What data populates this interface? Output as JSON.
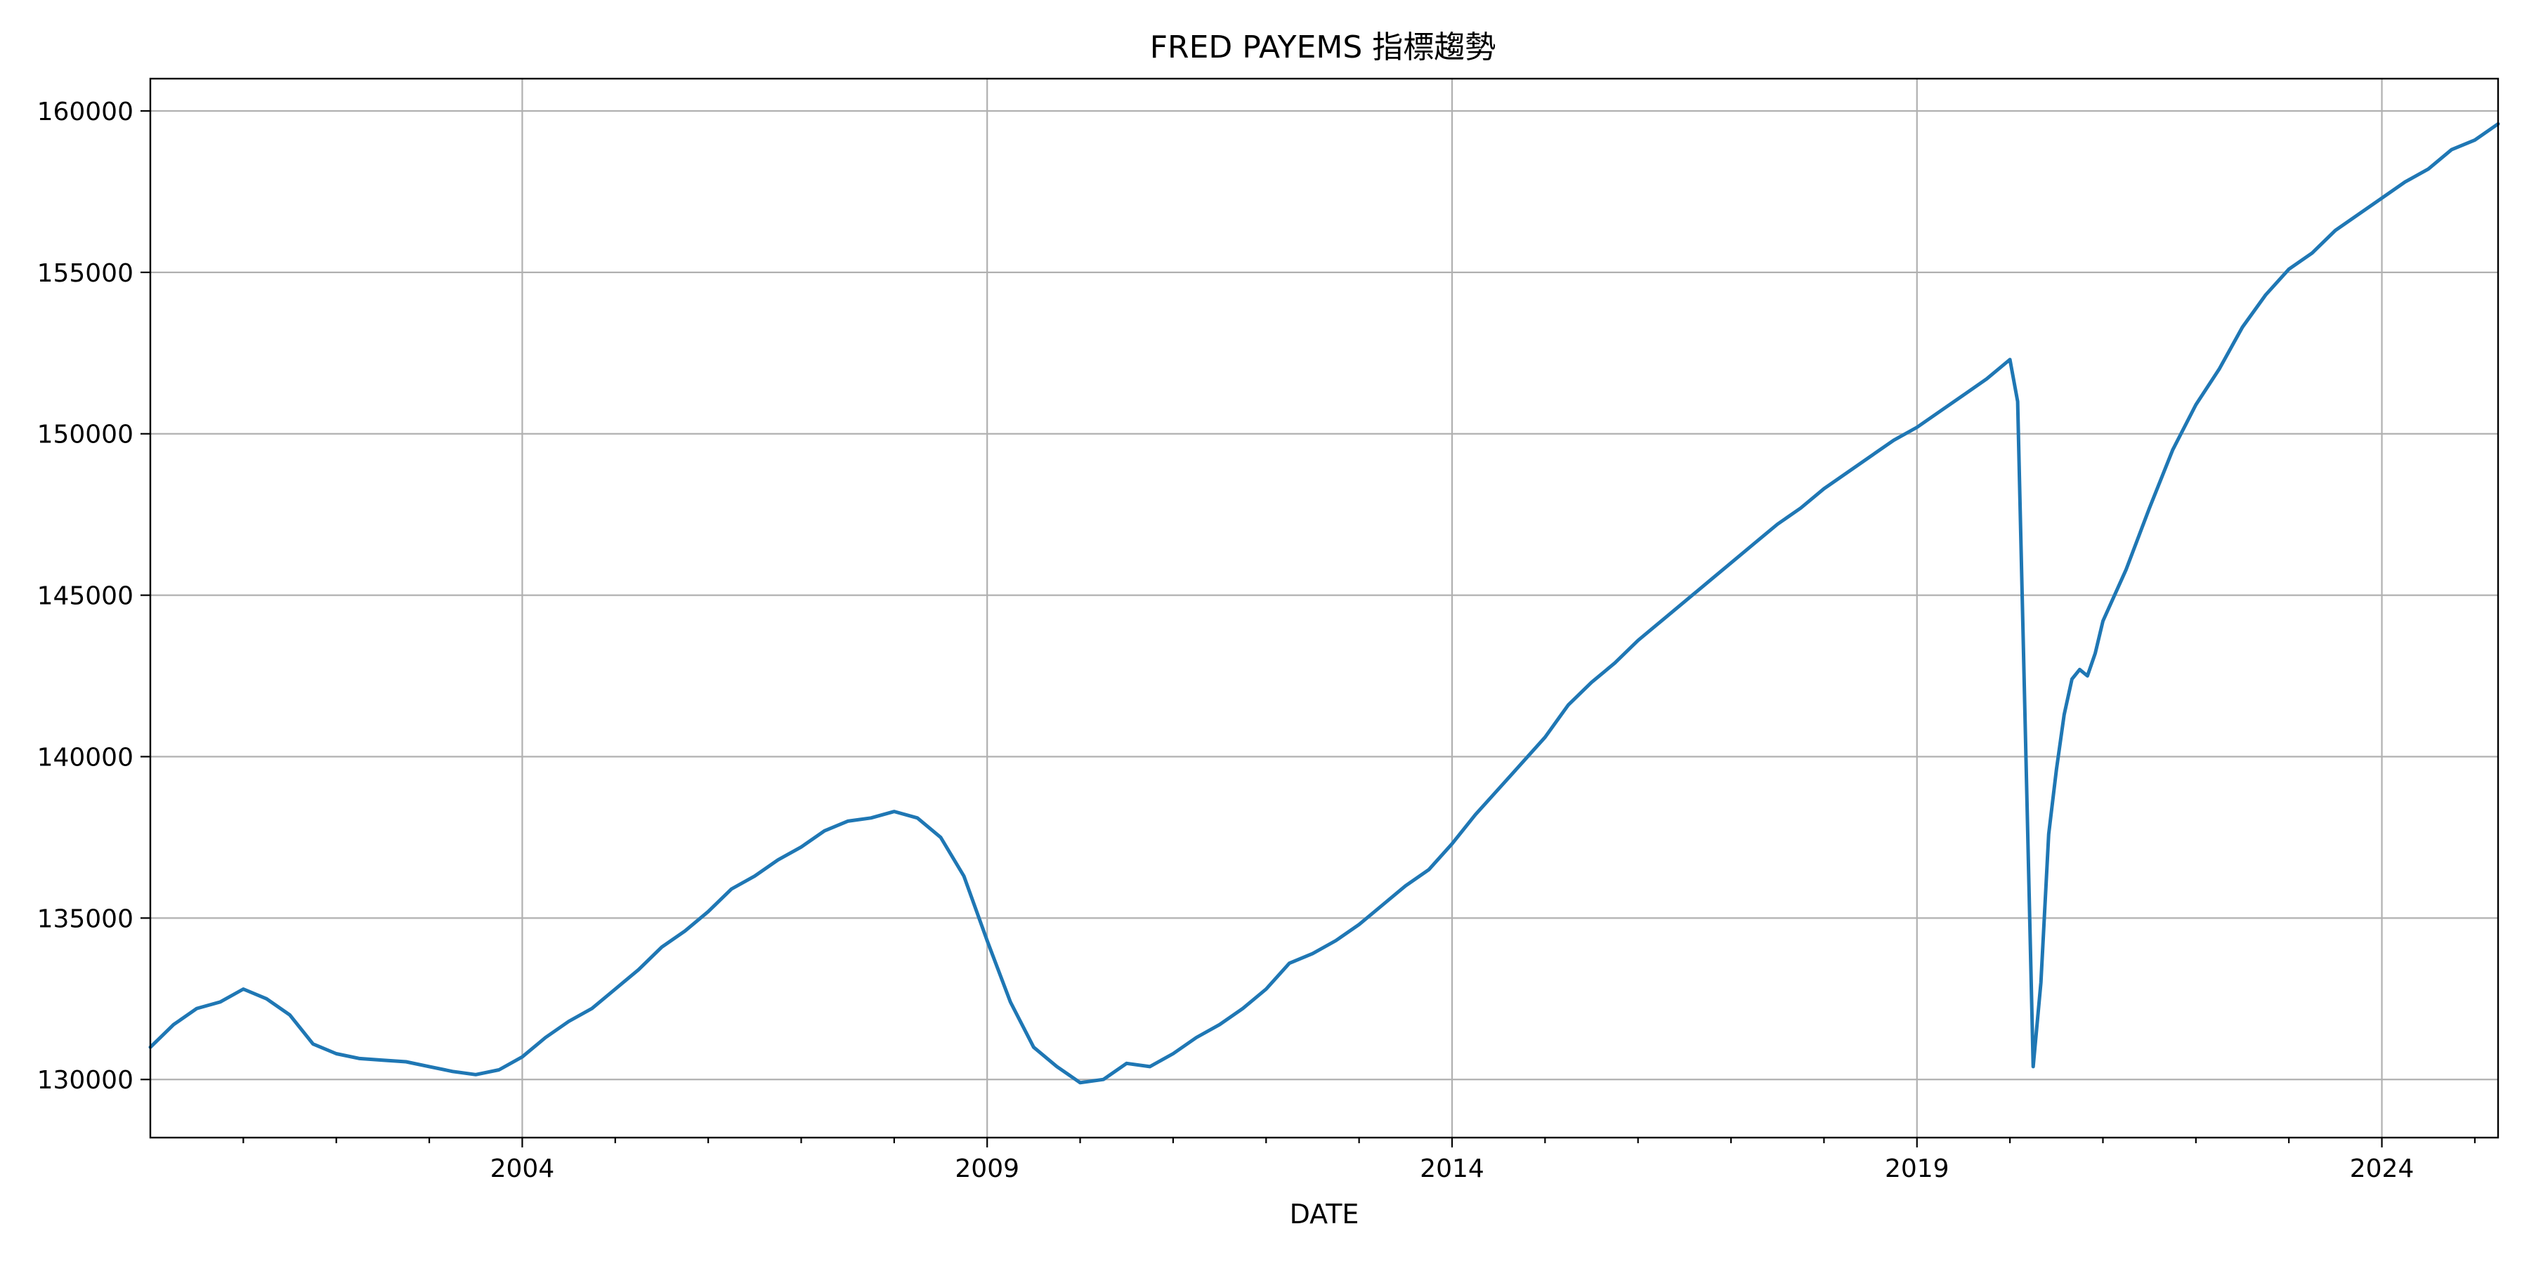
{
  "chart_data": {
    "type": "line",
    "title": "FRED PAYEMS 指標趨勢",
    "xlabel": "DATE",
    "ylabel": "",
    "grid": true,
    "xlim": [
      2000.0,
      2025.25
    ],
    "ylim": [
      128200,
      161000
    ],
    "x_ticks": [
      {
        "value": 2004,
        "label": "2004"
      },
      {
        "value": 2009,
        "label": "2009"
      },
      {
        "value": 2014,
        "label": "2014"
      },
      {
        "value": 2019,
        "label": "2019"
      },
      {
        "value": 2024,
        "label": "2024"
      }
    ],
    "x_minor_ticks": [
      2001,
      2002,
      2003,
      2005,
      2006,
      2007,
      2008,
      2010,
      2011,
      2012,
      2013,
      2015,
      2016,
      2017,
      2018,
      2020,
      2021,
      2022,
      2023,
      2025
    ],
    "y_ticks": [
      {
        "value": 130000,
        "label": "130000"
      },
      {
        "value": 135000,
        "label": "135000"
      },
      {
        "value": 140000,
        "label": "140000"
      },
      {
        "value": 145000,
        "label": "145000"
      },
      {
        "value": 150000,
        "label": "150000"
      },
      {
        "value": 155000,
        "label": "155000"
      },
      {
        "value": 160000,
        "label": "160000"
      }
    ],
    "series": [
      {
        "color": "#1f77b4",
        "x": [
          2000.0,
          2000.25,
          2000.5,
          2000.75,
          2001.0,
          2001.25,
          2001.5,
          2001.75,
          2002.0,
          2002.25,
          2002.5,
          2002.75,
          2003.0,
          2003.25,
          2003.5,
          2003.75,
          2004.0,
          2004.25,
          2004.5,
          2004.75,
          2005.0,
          2005.25,
          2005.5,
          2005.75,
          2006.0,
          2006.25,
          2006.5,
          2006.75,
          2007.0,
          2007.25,
          2007.5,
          2007.75,
          2008.0,
          2008.25,
          2008.5,
          2008.75,
          2009.0,
          2009.25,
          2009.5,
          2009.75,
          2010.0,
          2010.25,
          2010.5,
          2010.75,
          2011.0,
          2011.25,
          2011.5,
          2011.75,
          2012.0,
          2012.25,
          2012.5,
          2012.75,
          2013.0,
          2013.25,
          2013.5,
          2013.75,
          2014.0,
          2014.25,
          2014.5,
          2014.75,
          2015.0,
          2015.25,
          2015.5,
          2015.75,
          2016.0,
          2016.25,
          2016.5,
          2016.75,
          2017.0,
          2017.25,
          2017.5,
          2017.75,
          2018.0,
          2018.25,
          2018.5,
          2018.75,
          2019.0,
          2019.25,
          2019.5,
          2019.75,
          2020.0,
          2020.083,
          2020.25,
          2020.333,
          2020.417,
          2020.5,
          2020.583,
          2020.667,
          2020.75,
          2020.833,
          2020.917,
          2021.0,
          2021.25,
          2021.5,
          2021.75,
          2022.0,
          2022.25,
          2022.5,
          2022.75,
          2023.0,
          2023.25,
          2023.5,
          2023.75,
          2024.0,
          2024.25,
          2024.5,
          2024.75,
          2025.0,
          2025.25
        ],
        "values": [
          131000,
          131700,
          132200,
          132400,
          132800,
          132500,
          132000,
          131100,
          130800,
          130650,
          130600,
          130550,
          130400,
          130250,
          130150,
          130300,
          130700,
          131300,
          131800,
          132200,
          132800,
          133400,
          134100,
          134600,
          135200,
          135900,
          136300,
          136800,
          137200,
          137700,
          138000,
          138100,
          138300,
          138100,
          137500,
          136300,
          134300,
          132400,
          131000,
          130400,
          129900,
          130000,
          130500,
          130400,
          130800,
          131300,
          131700,
          132200,
          132800,
          133600,
          133900,
          134300,
          134800,
          135400,
          136000,
          136500,
          137300,
          138200,
          139000,
          139800,
          140600,
          141600,
          142300,
          142900,
          143600,
          144200,
          144800,
          145400,
          146000,
          146600,
          147200,
          147700,
          148300,
          148800,
          149300,
          149800,
          150200,
          150700,
          151200,
          151700,
          152300,
          151000,
          130400,
          133000,
          137600,
          139600,
          141300,
          142400,
          142700,
          142500,
          143200,
          144200,
          145800,
          147700,
          149500,
          150900,
          152000,
          153300,
          154300,
          155100,
          155600,
          156300,
          156800,
          157300,
          157800,
          158200,
          158800,
          159100,
          159600
        ]
      }
    ]
  }
}
